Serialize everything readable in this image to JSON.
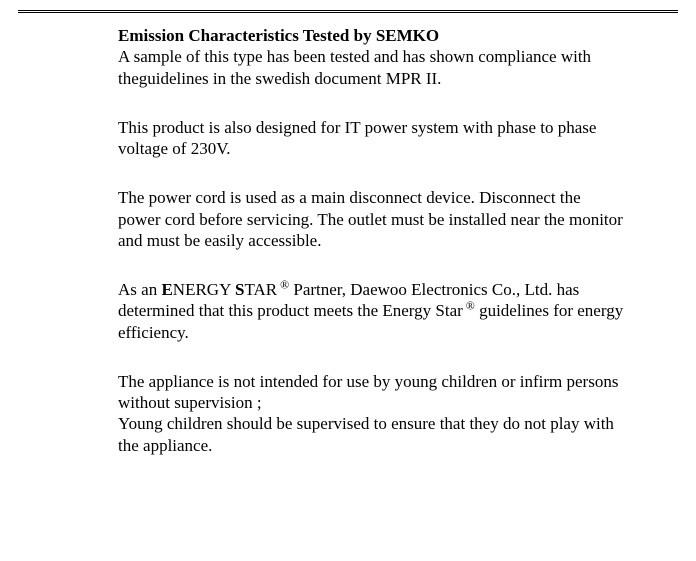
{
  "heading": "Emission Characteristics Tested by  SEMKO",
  "p1": "A sample of this type has been tested and has shown compliance with theguidelines  in the swedish document MPR II.",
  "p2": "This product is also designed for IT power system with phase to phase voltage of 230V.",
  "p3": "The power cord is used  as a main disconnect device.  Disconnect the power cord before servicing.  The outlet must be installed near the monitor and must be easily accessible.",
  "p4_a": "As an ",
  "p4_b1": "E",
  "p4_b2": "NERGY ",
  "p4_b3": "S",
  "p4_b4": "TAR",
  "p4_sup": " ®",
  "p4_c": "  Partner, Daewoo Electronics Co., Ltd. has determined that this product meets the Energy Star",
  "p4_sup2": " ®",
  "p4_d": " guidelines for energy efficiency.",
  "p5a": "The appliance is not intended for use by young children or infirm persons without supervision ;",
  "p5b": "Young children should be supervised to ensure that they do not play with the appliance.",
  "colors": {
    "text": "#000000",
    "background": "#ffffff"
  },
  "font": {
    "family": "Times New Roman",
    "size_pt": 13
  }
}
